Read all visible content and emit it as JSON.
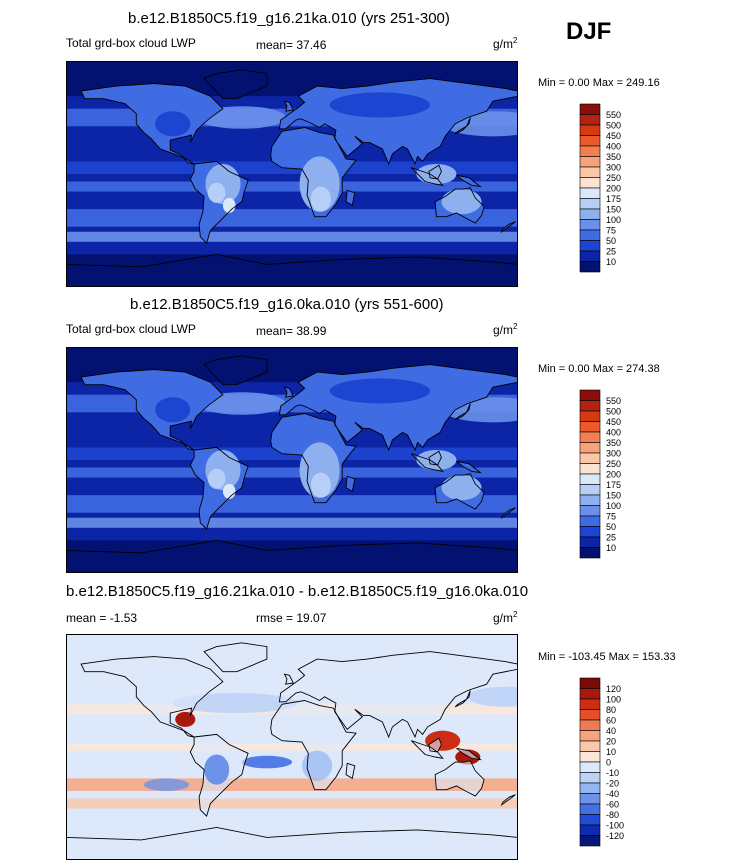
{
  "season": "DJF",
  "panels": [
    {
      "title": "b.e12.B1850C5.f19_g16.21ka.010 (yrs 251-300)",
      "variable": "Total grd-box cloud LWP",
      "stat1_label": "mean=",
      "stat1_value": "37.46",
      "stat2_label": "",
      "stat2_value": "",
      "units_base": "g/m",
      "units_exp": "2",
      "minmax": "Min =   0.00 Max = 249.16",
      "colorbar_labels": [
        "550",
        "500",
        "450",
        "400",
        "350",
        "300",
        "250",
        "200",
        "175",
        "150",
        "100",
        "75",
        "50",
        "25",
        "10"
      ],
      "colorbar_colors": [
        "#8a0f0a",
        "#b5220f",
        "#d53a12",
        "#ea5a2c",
        "#f37e52",
        "#f7a27b",
        "#fac6a6",
        "#fbe3d2",
        "#dbe8fa",
        "#b7cff6",
        "#8fb0ef",
        "#6a90ea",
        "#3f6ce3",
        "#1d45d2",
        "#0c24a6",
        "#031270"
      ],
      "map_scheme": "lwp"
    },
    {
      "title": "b.e12.B1850C5.f19_g16.0ka.010 (yrs 551-600)",
      "variable": "Total grd-box cloud LWP",
      "stat1_label": "mean=",
      "stat1_value": "38.99",
      "stat2_label": "",
      "stat2_value": "",
      "units_base": "g/m",
      "units_exp": "2",
      "minmax": "Min =   0.00 Max = 274.38",
      "colorbar_labels": [
        "550",
        "500",
        "450",
        "400",
        "350",
        "300",
        "250",
        "200",
        "175",
        "150",
        "100",
        "75",
        "50",
        "25",
        "10"
      ],
      "colorbar_colors": [
        "#8a0f0a",
        "#b5220f",
        "#d53a12",
        "#ea5a2c",
        "#f37e52",
        "#f7a27b",
        "#fac6a6",
        "#fbe3d2",
        "#dbe8fa",
        "#b7cff6",
        "#8fb0ef",
        "#6a90ea",
        "#3f6ce3",
        "#1d45d2",
        "#0c24a6",
        "#031270"
      ],
      "map_scheme": "lwp"
    },
    {
      "title": "b.e12.B1850C5.f19_g16.21ka.010 - b.e12.B1850C5.f19_g16.0ka.010",
      "variable": "",
      "stat1_label": "mean =",
      "stat1_value": "-1.53",
      "stat2_label": "rmse =",
      "stat2_value": "19.07",
      "units_base": "g/m",
      "units_exp": "2",
      "minmax": "Min = -103.45 Max = 153.33",
      "colorbar_labels": [
        "120",
        "100",
        "80",
        "60",
        "40",
        "20",
        "10",
        "0",
        "-10",
        "-20",
        "-40",
        "-60",
        "-80",
        "-100",
        "-120"
      ],
      "colorbar_colors": [
        "#7a0c07",
        "#a8190d",
        "#cc2d13",
        "#e4502a",
        "#f07a52",
        "#f6a47f",
        "#f9c9ad",
        "#fbe6d9",
        "#dde9fa",
        "#bcd3f6",
        "#94b5f0",
        "#6c92ea",
        "#4570e4",
        "#224cd8",
        "#0c2bb0",
        "#041878"
      ],
      "map_scheme": "diff"
    }
  ]
}
